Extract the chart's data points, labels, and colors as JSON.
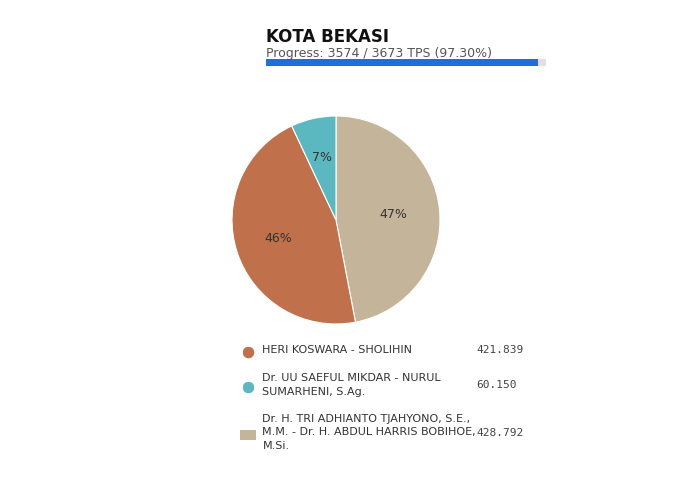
{
  "title": "KOTA BEKASI",
  "progress_text": "Progress: 3574 / 3673 TPS (97.30%)",
  "progress_value": 0.973,
  "slices": [
    47,
    46,
    7
  ],
  "slice_labels": [
    "47%",
    "46%",
    "7%"
  ],
  "slice_colors": [
    "#C4B49A",
    "#C0704A",
    "#5BB8C1"
  ],
  "legend_items": [
    {
      "color": "#C0704A",
      "label": "HERI KOSWARA - SHOLIHIN",
      "value": "421.839",
      "marker": "circle",
      "label_line2": ""
    },
    {
      "color": "#5BB8C1",
      "label": "Dr. UU SAEFUL MIKDAR - NURUL",
      "label_line2": "SUMARHENI, S.Ag.",
      "value": "60.150",
      "marker": "circle"
    },
    {
      "color": "#C4B49A",
      "label": "Dr. H. TRI ADHIANTO TJAHYONO, S.E.,",
      "label_line2": "M.M. - Dr. H. ABDUL HARRIS BOBIHOE,",
      "label_line3": "M.Si.",
      "value": "428.792",
      "marker": "square"
    }
  ],
  "background_color": "#ffffff",
  "progress_bar_color": "#1E6FD9",
  "progress_bar_bg": "#e0e0e0",
  "title_fontsize": 12,
  "progress_fontsize": 9,
  "legend_fontsize": 8,
  "startangle": 90
}
